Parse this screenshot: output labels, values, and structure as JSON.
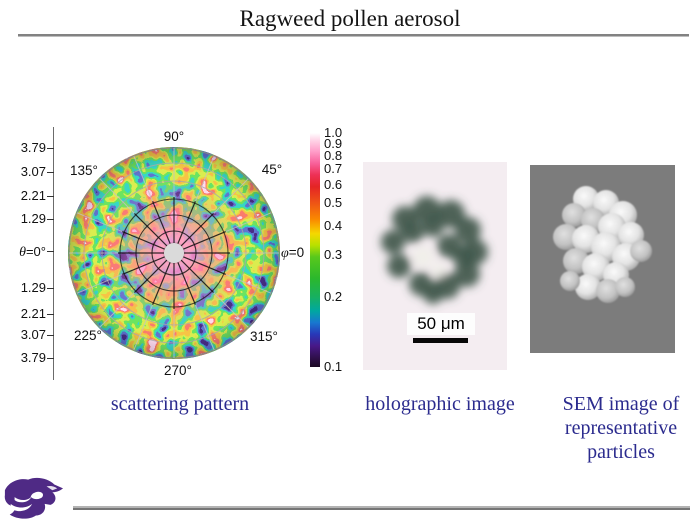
{
  "slide": {
    "title": "Ragweed pollen aerosol"
  },
  "scattering": {
    "caption": "scattering pattern",
    "radial_labels_top": [
      "3.79",
      "3.07",
      "2.21",
      "1.29"
    ],
    "radial_labels_bottom": [
      "1.29",
      "2.21",
      "3.07",
      "3.79"
    ],
    "theta_label": {
      "sym": "θ",
      "rest": "=0°"
    },
    "phi_label": {
      "sym": "φ",
      "rest": "=0"
    },
    "angle_labels": {
      "top": "90°",
      "top_right": "45°",
      "top_left": "135°",
      "bottom_left": "225°",
      "bottom_right": "315°",
      "bottom": "270°"
    }
  },
  "colorbar": {
    "scale": "logarithmic",
    "tick_values": [
      "1.0",
      "0.9",
      "0.8",
      "0.7",
      "0.6",
      "0.5",
      "0.4",
      "0.3",
      "0.2",
      "0.1"
    ],
    "top_color": "#ffffff",
    "bottom_color": "#1a0822"
  },
  "holographic": {
    "caption": "holographic image",
    "scale_bar_label": "50 μm"
  },
  "sem": {
    "caption_lines": [
      "SEM image of",
      "representative",
      "particles"
    ]
  },
  "logo": {
    "name": "Kansas State University Powercat",
    "color": "#4f2a85"
  },
  "colors": {
    "caption_text": "#2b2b8e",
    "rule_gray": "#828282"
  }
}
